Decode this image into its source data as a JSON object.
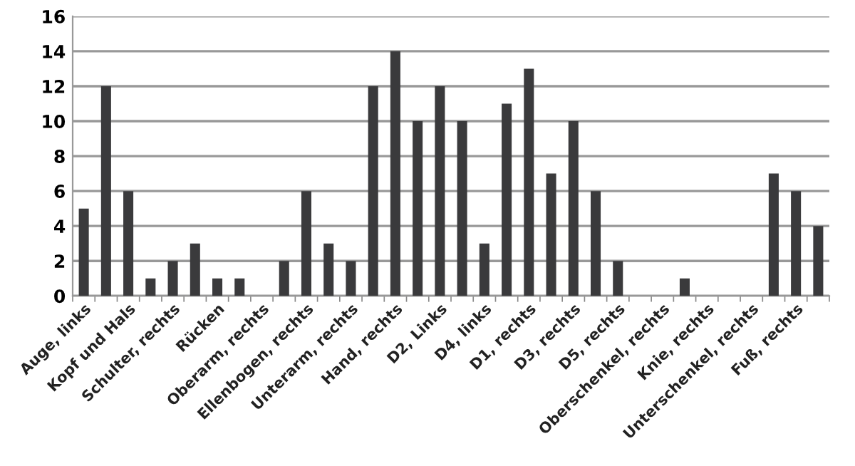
{
  "chart_data": {
    "type": "bar",
    "categories": [
      "Auge, links",
      null,
      "Kopf und Hals",
      null,
      "Schulter, rechts",
      null,
      "Rücken",
      null,
      "Oberarm, rechts",
      null,
      "Ellenbogen, rechts",
      null,
      "Unterarm, rechts",
      null,
      "Hand, rechts",
      null,
      "D2, Links",
      null,
      "D4, links",
      null,
      "D1, rechts",
      null,
      "D3, rechts",
      null,
      "D5, rechts",
      null,
      "Oberschenkel, rechts",
      null,
      "Knie, rechts",
      null,
      "Unterschenkel, rechts",
      null,
      "Fuß, rechts",
      null
    ],
    "values": [
      5,
      12,
      6,
      1,
      2,
      3,
      1,
      1,
      0,
      2,
      6,
      3,
      2,
      12,
      14,
      10,
      12,
      10,
      3,
      11,
      13,
      7,
      10,
      6,
      2,
      0,
      0,
      1,
      0,
      0,
      0,
      7,
      6,
      4
    ],
    "color": "#3a3a3c",
    "ylim": [
      0,
      16
    ],
    "yticks": [
      0,
      2,
      4,
      6,
      8,
      10,
      12,
      14,
      16
    ],
    "grid": "y"
  }
}
